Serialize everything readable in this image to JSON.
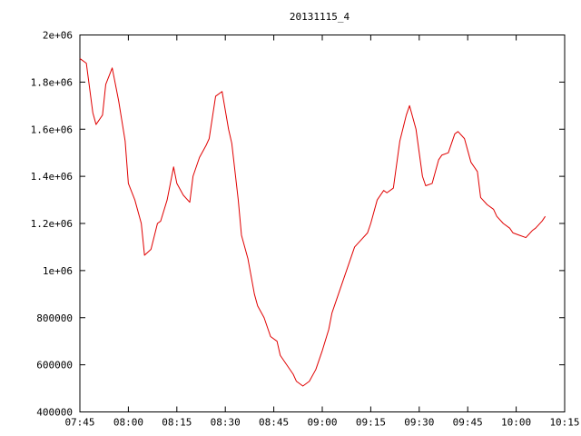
{
  "chart_data": {
    "type": "line",
    "title": "20131115_4",
    "xlabel": "",
    "ylabel": "",
    "x_ticks": [
      "07:45",
      "08:00",
      "08:15",
      "08:30",
      "08:45",
      "09:00",
      "09:15",
      "09:30",
      "09:45",
      "10:00",
      "10:15"
    ],
    "y_ticks": [
      "400000",
      "600000",
      "800000",
      "1e+06",
      "1.2e+06",
      "1.4e+06",
      "1.6e+06",
      "1.8e+06",
      "2e+06"
    ],
    "xlim": [
      "07:45",
      "10:15"
    ],
    "ylim": [
      400000,
      2000000
    ],
    "grid": false,
    "line_color": "#e00000",
    "series": [
      {
        "name": "",
        "x": [
          "07:45",
          "07:47",
          "07:49",
          "07:50",
          "07:52",
          "07:53",
          "07:55",
          "07:57",
          "07:59",
          "08:00",
          "08:02",
          "08:04",
          "08:05",
          "08:07",
          "08:09",
          "08:10",
          "08:12",
          "08:14",
          "08:15",
          "08:17",
          "08:19",
          "08:20",
          "08:22",
          "08:24",
          "08:25",
          "08:27",
          "08:29",
          "08:31",
          "08:32",
          "08:34",
          "08:35",
          "08:37",
          "08:39",
          "08:40",
          "08:42",
          "08:44",
          "08:46",
          "08:47",
          "08:49",
          "08:51",
          "08:52",
          "08:54",
          "08:56",
          "08:58",
          "09:00",
          "09:02",
          "09:03",
          "09:05",
          "09:07",
          "09:09",
          "09:10",
          "09:12",
          "09:14",
          "09:15",
          "09:17",
          "09:19",
          "09:20",
          "09:22",
          "09:24",
          "09:26",
          "09:27",
          "09:29",
          "09:31",
          "09:32",
          "09:34",
          "09:36",
          "09:37",
          "09:39",
          "09:41",
          "09:42",
          "09:44",
          "09:46",
          "09:48",
          "09:49",
          "09:51",
          "09:53",
          "09:54",
          "09:56",
          "09:58",
          "09:59",
          "10:01",
          "10:03",
          "10:05",
          "10:06",
          "10:08",
          "10:09"
        ],
        "values": [
          1900000,
          1880000,
          1670000,
          1620000,
          1660000,
          1790000,
          1860000,
          1720000,
          1550000,
          1370000,
          1300000,
          1200000,
          1065000,
          1090000,
          1200000,
          1210000,
          1300000,
          1440000,
          1370000,
          1320000,
          1290000,
          1400000,
          1480000,
          1530000,
          1560000,
          1740000,
          1760000,
          1600000,
          1540000,
          1300000,
          1150000,
          1050000,
          900000,
          850000,
          800000,
          720000,
          700000,
          640000,
          600000,
          560000,
          530000,
          510000,
          530000,
          580000,
          660000,
          750000,
          820000,
          900000,
          980000,
          1060000,
          1100000,
          1130000,
          1160000,
          1200000,
          1300000,
          1340000,
          1330000,
          1350000,
          1550000,
          1660000,
          1700000,
          1600000,
          1400000,
          1360000,
          1370000,
          1470000,
          1490000,
          1500000,
          1580000,
          1590000,
          1560000,
          1460000,
          1420000,
          1310000,
          1280000,
          1260000,
          1230000,
          1200000,
          1180000,
          1160000,
          1150000,
          1140000,
          1170000,
          1180000,
          1210000,
          1230000
        ]
      }
    ]
  }
}
